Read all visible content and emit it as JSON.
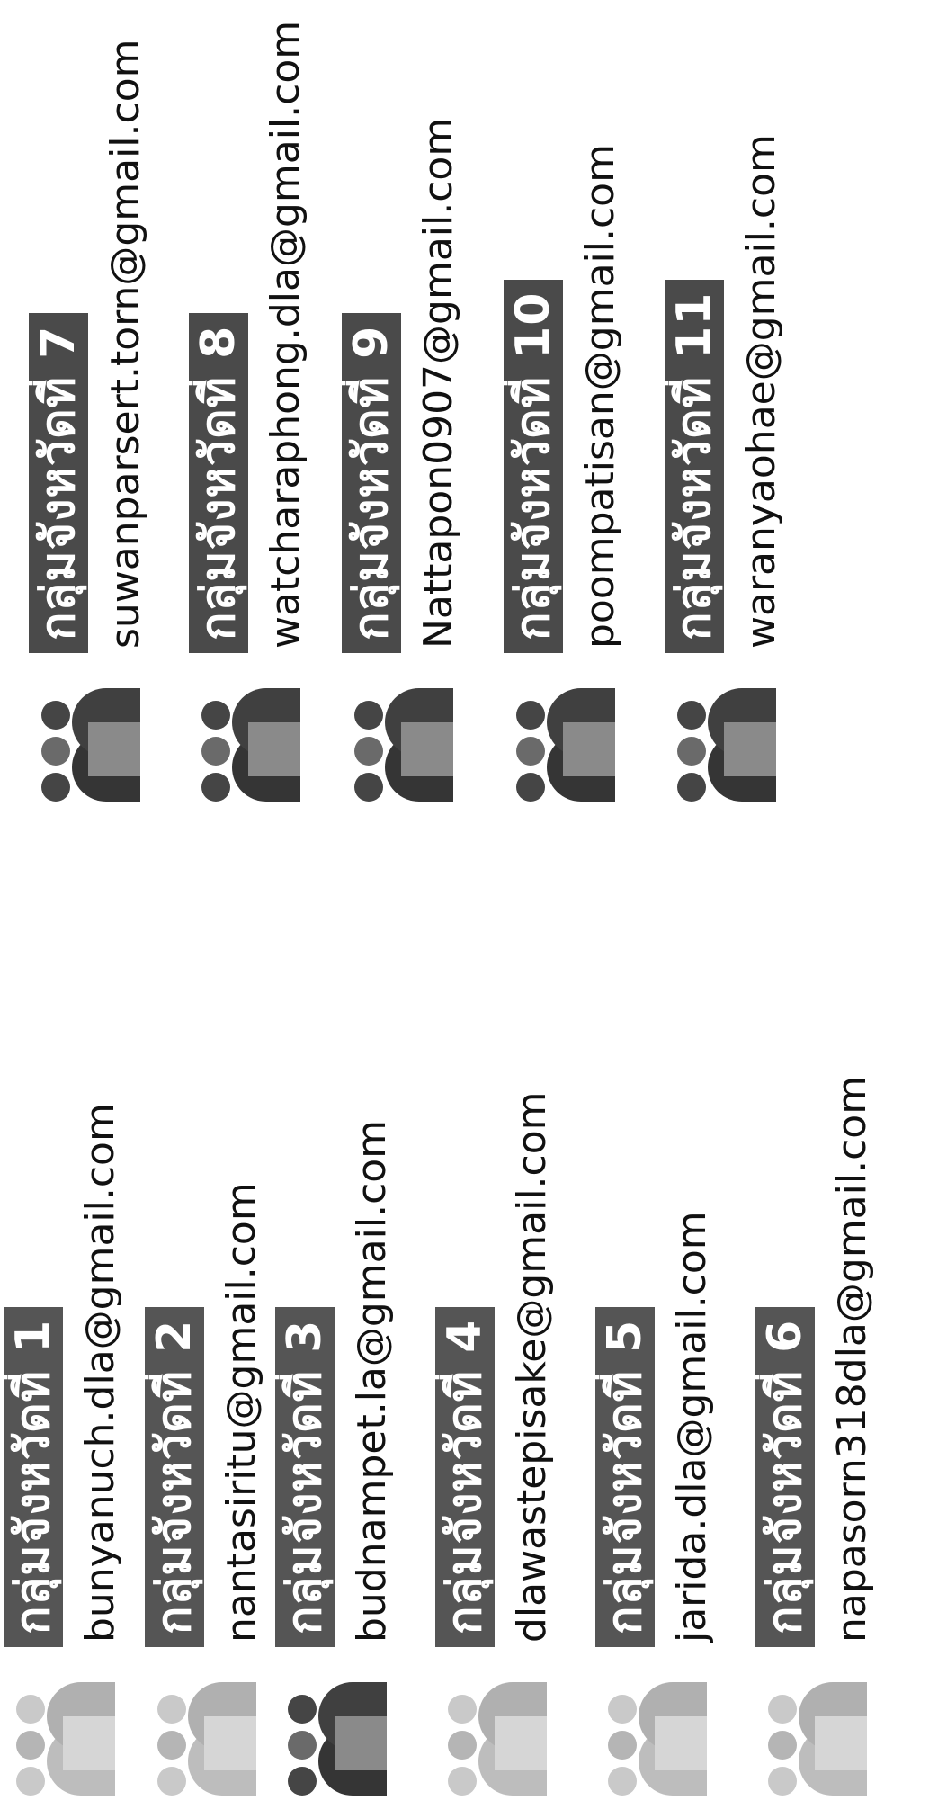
{
  "colors": {
    "label_bg": "#555555",
    "icon_light": [
      "#c9c9c9",
      "#b5b5b5",
      "#d6d6d6",
      "#bdbdbd"
    ],
    "icon_dark": [
      "#454545",
      "#6a6a6a",
      "#8a8a8a",
      "#353535"
    ]
  },
  "left_groups": [
    {
      "label": "กลุ่มจังหวัดที่ 1",
      "email": "bunyanuch.dla@gmail.com",
      "icon": "people-group-icon"
    },
    {
      "label": "กลุ่มจังหวัดที่ 2",
      "email": "nantasiritu@gmail.com",
      "icon": "people-group-icon"
    },
    {
      "label": "กลุ่มจังหวัดที่ 3",
      "email": "budnampet.la@gmail.com",
      "icon": "people-group-icon"
    },
    {
      "label": "กลุ่มจังหวัดที่ 4",
      "email": "dlawastepisake@gmail.com",
      "icon": "people-group-icon"
    },
    {
      "label": "กลุ่มจังหวัดที่ 5",
      "email": "jarida.dla@gmail.com",
      "icon": "people-group-icon"
    },
    {
      "label": "กลุ่มจังหวัดที่ 6",
      "email": "napasorn318dla@gmail.com",
      "icon": "people-group-icon"
    }
  ],
  "right_groups": [
    {
      "label": "กลุ่มจังหวัดที่ 7",
      "email": "suwanparsert.torn@gmail.com",
      "icon": "people-group-icon"
    },
    {
      "label": "กลุ่มจังหวัดที่ 8",
      "email": "watcharaphong.dla@gmail.com",
      "icon": "people-group-icon"
    },
    {
      "label": "กลุ่มจังหวัดที่ 9",
      "email": "Nattapon0907@gmail.com",
      "icon": "people-group-icon"
    },
    {
      "label": "กลุ่มจังหวัดที่ 10",
      "email": "poompatisan@gmail.com",
      "icon": "people-group-icon"
    },
    {
      "label": "กลุ่มจังหวัดที่ 11",
      "email": "waranyaohae@gmail.com",
      "icon": "people-group-icon"
    }
  ]
}
